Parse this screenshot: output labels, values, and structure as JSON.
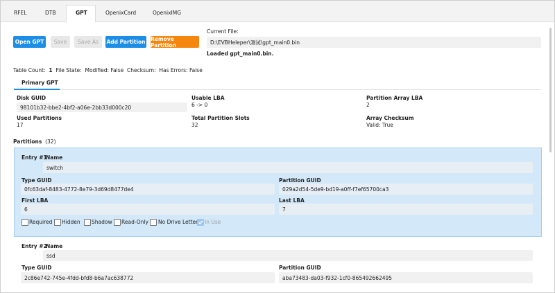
{
  "tabs": [
    "RFEL",
    "DTB",
    "GPT",
    "OpenixCard",
    "OpenixIMG"
  ],
  "toolbar": {
    "buttons": [
      "Open GPT",
      "Save",
      "Save As",
      "Add Partition",
      "Remove Partition"
    ],
    "current_file_label": "Current File:",
    "current_file": "D:\\EVBHeleper\\测试\\gpt_main0.bin",
    "status": "Loaded gpt_main0.bin."
  },
  "summary": {
    "table_count_label": "Table Count:",
    "table_count": "1",
    "file_state_label": "File State:",
    "modified": "Modified: False",
    "checksum_label": "Checksum:",
    "errors": "Has Errors: False"
  },
  "subtab": "Primary GPT",
  "fields": [
    {
      "label": "Disk GUID",
      "value": "98101b32-bbe2-4bf2-a06e-2bb33d000c20"
    },
    {
      "label": "Usable LBA",
      "value": "6 -> 0"
    },
    {
      "label": "Partition Array LBA",
      "value": "2"
    },
    {
      "label": "Used Partitions",
      "value": "17"
    },
    {
      "label": "Total Partition Slots",
      "value": "32"
    },
    {
      "label": "Array Checksum",
      "value": "Valid: True"
    }
  ],
  "partitions": {
    "label": "Partitions",
    "count": "(32)"
  },
  "entries": [
    {
      "entry": "Entry #1",
      "name_label": "Name",
      "name": "switch",
      "type_guid_label": "Type GUID",
      "type_guid": "0fc63daf-8483-4772-8e79-3d69d8477de4",
      "partition_guid_label": "Partition GUID",
      "partition_guid": "029a2d54-5de9-bd19-a0ff-f7ef65700ca3",
      "first_lba_label": "First LBA",
      "first_lba": "6",
      "last_lba_label": "Last LBA",
      "last_lba": "7",
      "flags": [
        "Required",
        "Hidden",
        "Shadow",
        "Read-Only",
        "No Drive Letter",
        "In Use"
      ]
    },
    {
      "entry": "Entry #2",
      "name_label": "Name",
      "name": "ssd",
      "type_guid_label": "Type GUID",
      "type_guid": "2c86e742-745e-4fdd-bfd8-b6a7ac638772",
      "partition_guid_label": "Partition GUID",
      "partition_guid": "aba73483-da03-f932-1cf0-865492662495"
    }
  ]
}
